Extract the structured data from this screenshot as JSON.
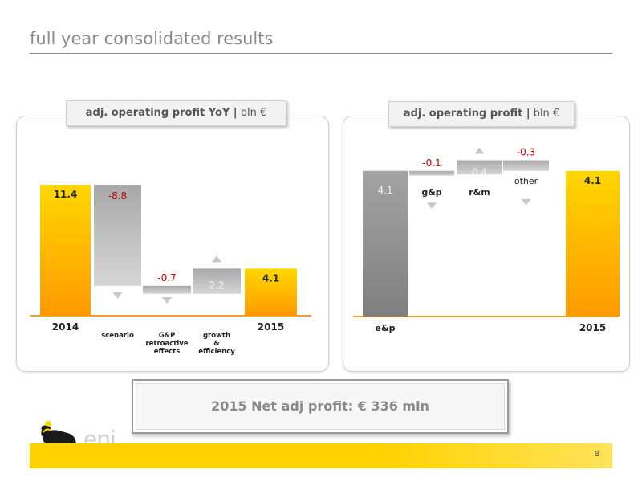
{
  "slide": {
    "title": "full year consolidated results",
    "page_number": "8",
    "net_profit_text": "2015 Net adj profit: € 336 mln",
    "logo_text": "eni"
  },
  "left_panel": {
    "tab_bold": "adj. operating profit YoY |",
    "tab_unit": " bln €"
  },
  "right_panel": {
    "tab_bold": "adj. operating profit |",
    "tab_unit": " bln €"
  },
  "colors": {
    "total_bar": "#ffb300",
    "total_bar_light": "#ffd700",
    "grey_bar": "#9c9c9c",
    "light_grey_bar": "#b3b3b3",
    "negative_value": "#c00000",
    "baseline": "#f0a030",
    "footer": "#ffd200"
  },
  "chart_data": [
    {
      "type": "bar",
      "title": "adj. operating profit YoY | bln €",
      "categories": [
        "2014",
        "scenario",
        "G&P retroactive effects",
        "growth & efficiency",
        "2015"
      ],
      "category_labels": [
        [
          "2014"
        ],
        [
          "scenario"
        ],
        [
          "G&P",
          "retroactive",
          "effects"
        ],
        [
          "growth",
          "&",
          "efficiency"
        ],
        [
          "2015"
        ]
      ],
      "values": [
        11.4,
        -8.8,
        -0.7,
        2.2,
        4.1
      ],
      "value_labels": [
        "11.4",
        "-8.8",
        "-0.7",
        "2.2",
        "4.1"
      ],
      "kinds": [
        "total",
        "delta",
        "delta",
        "delta",
        "total"
      ],
      "arrows": [
        "none",
        "down",
        "down",
        "up",
        "none"
      ],
      "ylim": [
        0,
        12
      ]
    },
    {
      "type": "bar",
      "title": "adj. operating profit | bln €",
      "categories": [
        "e&p",
        "g&p",
        "r&m",
        "other",
        "2015"
      ],
      "category_labels": [
        [
          "e&p"
        ],
        [
          "g&p"
        ],
        [
          "r&m"
        ],
        [
          "other"
        ],
        [
          "2015"
        ]
      ],
      "values": [
        4.1,
        -0.1,
        0.4,
        -0.3,
        4.1
      ],
      "value_labels": [
        "4.1",
        "-0.1",
        "0.4",
        "-0.3",
        "4.1"
      ],
      "kinds": [
        "segment",
        "delta",
        "delta",
        "delta",
        "total"
      ],
      "arrows": [
        "none",
        "down",
        "up",
        "down",
        "none"
      ],
      "ylim": [
        0,
        4.5
      ]
    }
  ]
}
